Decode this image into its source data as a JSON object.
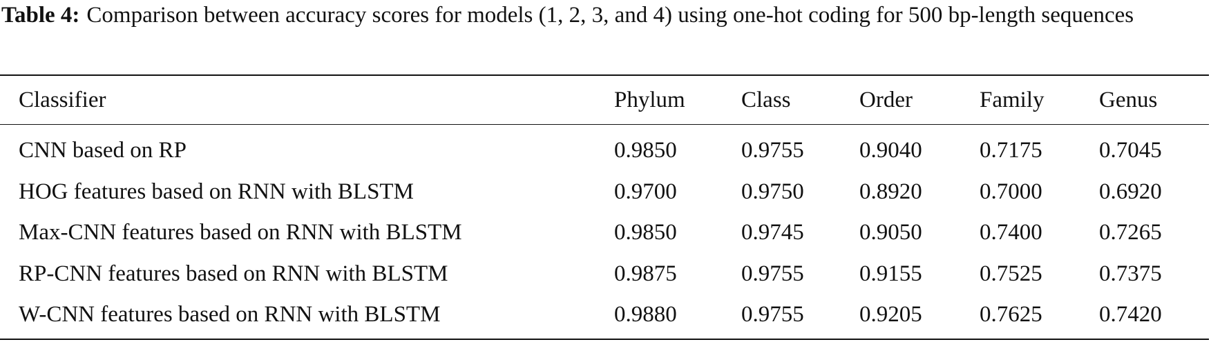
{
  "caption": {
    "label": "Table 4:",
    "text": "Comparison between accuracy scores for models (1, 2, 3, and 4) using one-hot coding for 500 bp-length sequences"
  },
  "table": {
    "header": [
      "Classifier",
      "Phylum",
      "Class",
      "Order",
      "Family",
      "Genus"
    ],
    "rows": [
      [
        "CNN based on RP",
        "0.9850",
        "0.9755",
        "0.9040",
        "0.7175",
        "0.7045"
      ],
      [
        "HOG features based on RNN with BLSTM",
        "0.9700",
        "0.9750",
        "0.8920",
        "0.7000",
        "0.6920"
      ],
      [
        "Max-CNN features based on RNN with BLSTM",
        "0.9850",
        "0.9745",
        "0.9050",
        "0.7400",
        "0.7265"
      ],
      [
        "RP-CNN features based on RNN with BLSTM",
        "0.9875",
        "0.9755",
        "0.9155",
        "0.7525",
        "0.7375"
      ],
      [
        "W-CNN features based on RNN with BLSTM",
        "0.9880",
        "0.9755",
        "0.9205",
        "0.7625",
        "0.7420"
      ]
    ]
  }
}
